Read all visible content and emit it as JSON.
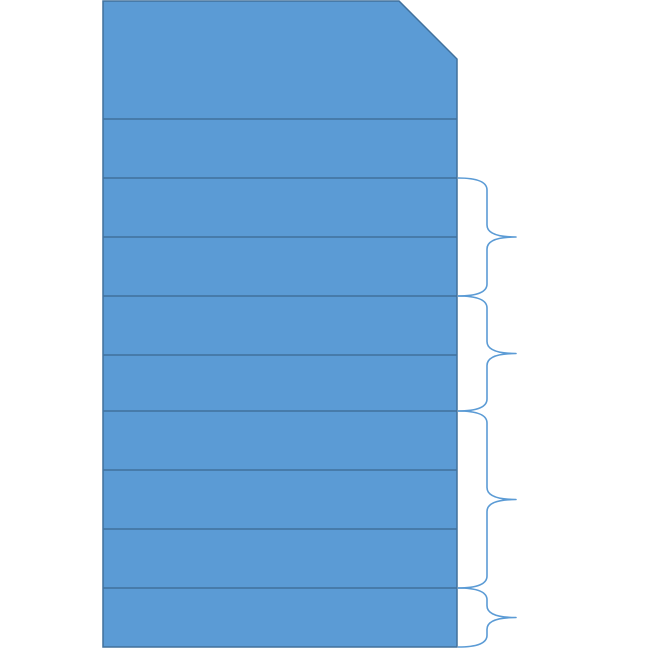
{
  "diagram": {
    "title": "",
    "fill_color": "#5b9bd5",
    "stroke_color": "#41719c",
    "brace_color": "#5b9bd5",
    "segment_count": 10,
    "brace_groups": [
      {
        "from_segment": 2,
        "to_segment": 3
      },
      {
        "from_segment": 4,
        "to_segment": 5
      },
      {
        "from_segment": 6,
        "to_segment": 8
      },
      {
        "from_segment": 9,
        "to_segment": 9
      }
    ]
  }
}
